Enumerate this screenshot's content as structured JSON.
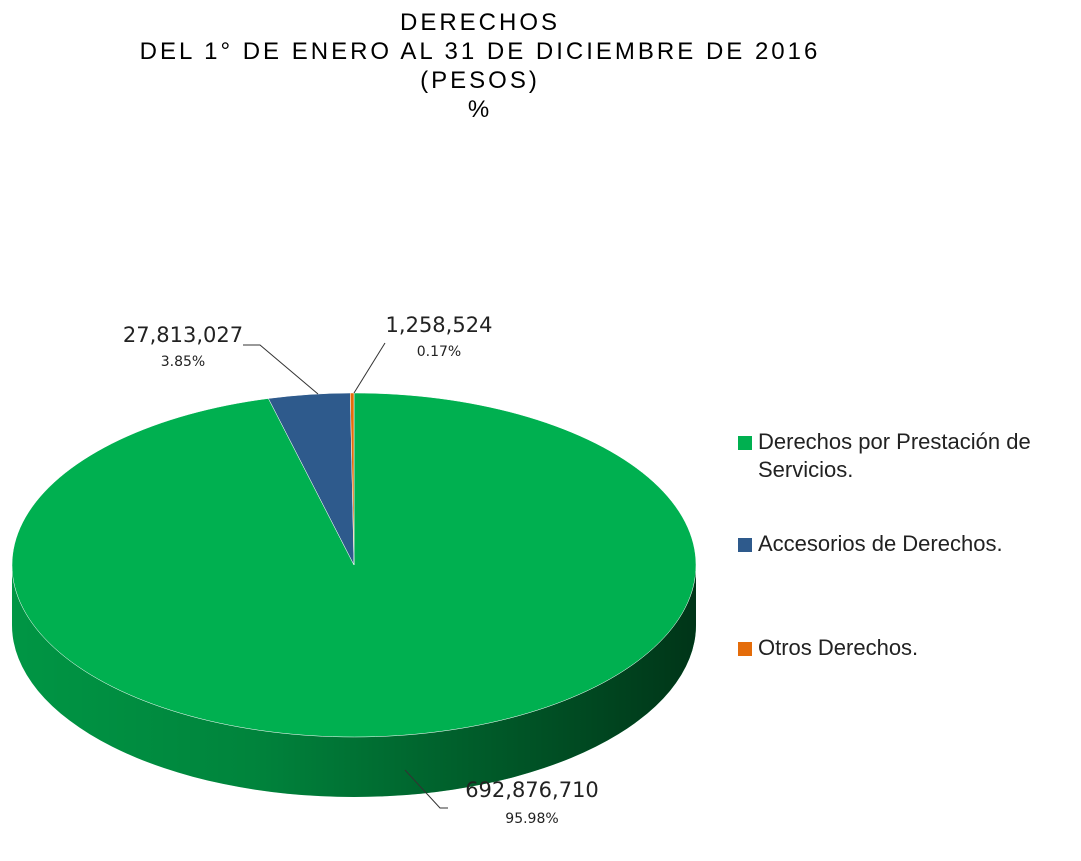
{
  "chart_data": {
    "type": "pie3d",
    "title_lines": [
      "DERECHOS",
      "DEL 1° DE ENERO AL 31 DE DICIEMBRE DE 2016",
      "(PESOS)",
      "%"
    ],
    "categories": [
      "Derechos por Prestación de Servicios.",
      "Accesorios de Derechos.",
      "Otros Derechos."
    ],
    "values": [
      692876710,
      27813027,
      1258524
    ],
    "value_labels": [
      "692,876,710",
      "27,813,027",
      "1,258,524"
    ],
    "percents": [
      95.98,
      3.85,
      0.17
    ],
    "percent_labels": [
      "95.98%",
      "3.85%",
      "0.17%"
    ],
    "colors": [
      "#00b050",
      "#2e5a8c",
      "#e46c0a"
    ],
    "legend": "right"
  }
}
